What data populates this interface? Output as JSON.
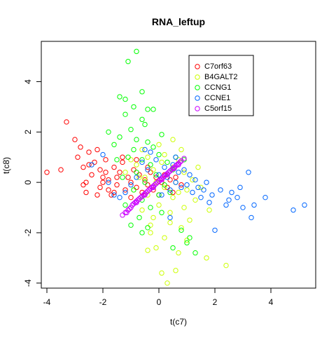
{
  "chart_data": {
    "type": "scatter",
    "title": "RNA_leftup",
    "xlabel": "t(c7)",
    "ylabel": "t(c8)",
    "xlim": [
      -4.2,
      5.6
    ],
    "ylim": [
      -4.2,
      5.6
    ],
    "x_ticks": [
      -4,
      -2,
      0,
      2,
      4
    ],
    "y_ticks": [
      -4,
      -2,
      0,
      2,
      4
    ],
    "grid": false,
    "legend_position": "top-right",
    "series": [
      {
        "name": "C7orf63",
        "color": "#FF0000",
        "points": [
          [
            -4.0,
            0.4
          ],
          [
            -3.5,
            0.5
          ],
          [
            -3.3,
            2.4
          ],
          [
            -3.0,
            1.7
          ],
          [
            -2.9,
            1.0
          ],
          [
            -2.8,
            1.4
          ],
          [
            -2.7,
            0.6
          ],
          [
            -2.7,
            -0.1
          ],
          [
            -2.6,
            -0.4
          ],
          [
            -2.6,
            0.0
          ],
          [
            -2.5,
            1.2
          ],
          [
            -2.5,
            0.7
          ],
          [
            -2.4,
            0.3
          ],
          [
            -2.3,
            0.8
          ],
          [
            -2.2,
            1.3
          ],
          [
            -2.1,
            0.5
          ],
          [
            -2.1,
            -0.2
          ],
          [
            -2.0,
            0.2
          ],
          [
            -2.0,
            0.0
          ],
          [
            -1.9,
            0.9
          ],
          [
            -1.9,
            0.4
          ],
          [
            -1.8,
            -0.3
          ],
          [
            -1.8,
            0.1
          ],
          [
            -1.7,
            -0.5
          ],
          [
            -1.6,
            0.6
          ],
          [
            -1.5,
            0.2
          ],
          [
            -1.5,
            -0.1
          ],
          [
            -1.4,
            0.4
          ],
          [
            -1.3,
            0.8
          ],
          [
            -1.2,
            -0.3
          ],
          [
            -1.1,
            0.2
          ],
          [
            -1.0,
            -0.6
          ],
          [
            -1.0,
            0.0
          ],
          [
            -0.9,
            0.5
          ],
          [
            -0.8,
            -0.2
          ],
          [
            -0.7,
            0.3
          ],
          [
            -0.6,
            -0.4
          ],
          [
            -0.5,
            0.1
          ],
          [
            -0.4,
            -0.1
          ],
          [
            -0.3,
            0.4
          ],
          [
            -0.2,
            -0.3
          ],
          [
            -0.1,
            0.2
          ],
          [
            0.0,
            -0.5
          ],
          [
            0.1,
            0.0
          ],
          [
            0.2,
            0.3
          ],
          [
            0.3,
            -0.2
          ],
          [
            0.4,
            0.1
          ],
          [
            0.5,
            -0.4
          ],
          [
            0.6,
            0.2
          ],
          [
            0.8,
            -0.1
          ],
          [
            -1.6,
            -0.4
          ],
          [
            -2.2,
            -0.5
          ],
          [
            -1.3,
            1.0
          ],
          [
            -0.8,
            0.9
          ],
          [
            -0.4,
            0.6
          ]
        ]
      },
      {
        "name": "B4GALT2",
        "color": "#CCFF00",
        "points": [
          [
            0.3,
            -4.0
          ],
          [
            0.1,
            -3.6
          ],
          [
            0.6,
            -3.5
          ],
          [
            2.4,
            -3.3
          ],
          [
            0.7,
            -2.8
          ],
          [
            -0.4,
            -2.7
          ],
          [
            -0.1,
            -2.6
          ],
          [
            1.7,
            -3.0
          ],
          [
            0.2,
            -2.2
          ],
          [
            -0.3,
            -2.0
          ],
          [
            0.8,
            -1.8
          ],
          [
            1.1,
            -1.5
          ],
          [
            -0.2,
            -1.4
          ],
          [
            0.4,
            -1.2
          ],
          [
            0.9,
            -1.0
          ],
          [
            -0.6,
            -1.1
          ],
          [
            0.0,
            -0.9
          ],
          [
            1.3,
            -0.7
          ],
          [
            0.5,
            -0.6
          ],
          [
            -0.4,
            -0.5
          ],
          [
            0.7,
            -0.4
          ],
          [
            1.0,
            -0.3
          ],
          [
            0.2,
            -0.2
          ],
          [
            -0.1,
            0.0
          ],
          [
            0.6,
            0.0
          ],
          [
            1.2,
            0.1
          ],
          [
            -0.5,
            0.2
          ],
          [
            0.3,
            0.3
          ],
          [
            0.9,
            0.4
          ],
          [
            -0.2,
            0.5
          ],
          [
            0.5,
            0.6
          ],
          [
            -0.8,
            0.7
          ],
          [
            0.1,
            0.8
          ],
          [
            0.7,
            0.9
          ],
          [
            -0.4,
            1.0
          ],
          [
            0.2,
            1.1
          ],
          [
            -1.0,
            0.9
          ],
          [
            -0.7,
            0.2
          ],
          [
            1.5,
            -0.2
          ],
          [
            1.8,
            -1.1
          ],
          [
            -0.9,
            -0.3
          ],
          [
            0.4,
            -1.6
          ],
          [
            1.0,
            -2.3
          ],
          [
            -0.6,
            1.3
          ],
          [
            0.0,
            1.5
          ],
          [
            1.4,
            0.6
          ],
          [
            -1.2,
            0.4
          ],
          [
            0.8,
            1.3
          ],
          [
            -0.3,
            -1.7
          ],
          [
            0.5,
            1.7
          ]
        ]
      },
      {
        "name": "CCNG1",
        "color": "#00FF00",
        "points": [
          [
            -0.8,
            5.2
          ],
          [
            -1.1,
            4.8
          ],
          [
            -1.4,
            3.4
          ],
          [
            -1.2,
            3.3
          ],
          [
            -0.6,
            3.6
          ],
          [
            -0.9,
            3.0
          ],
          [
            -0.4,
            2.9
          ],
          [
            -1.8,
            2.0
          ],
          [
            -1.2,
            2.7
          ],
          [
            -0.6,
            2.5
          ],
          [
            -0.2,
            2.9
          ],
          [
            -0.5,
            2.3
          ],
          [
            -1.0,
            2.1
          ],
          [
            -1.4,
            1.8
          ],
          [
            -0.8,
            1.7
          ],
          [
            -1.6,
            1.5
          ],
          [
            -0.4,
            1.6
          ],
          [
            -0.9,
            1.3
          ],
          [
            -0.2,
            1.4
          ],
          [
            0.1,
            1.9
          ],
          [
            -1.1,
            1.0
          ],
          [
            -0.6,
            0.9
          ],
          [
            0.0,
            1.1
          ],
          [
            -0.3,
            0.7
          ],
          [
            0.3,
            0.8
          ],
          [
            -0.8,
            0.4
          ],
          [
            -0.1,
            0.3
          ],
          [
            0.5,
            0.5
          ],
          [
            -1.3,
            0.2
          ],
          [
            -0.5,
            0.0
          ],
          [
            0.2,
            -0.1
          ],
          [
            -0.9,
            -0.3
          ],
          [
            0.0,
            -0.5
          ],
          [
            -0.6,
            -0.7
          ],
          [
            0.4,
            -0.4
          ],
          [
            -1.2,
            -0.9
          ],
          [
            -0.3,
            -1.0
          ],
          [
            -0.7,
            -1.4
          ],
          [
            0.1,
            -1.2
          ],
          [
            -1.0,
            -1.7
          ],
          [
            -0.4,
            -1.8
          ],
          [
            0.8,
            -1.9
          ],
          [
            1.1,
            -2.2
          ],
          [
            1.0,
            -2.4
          ],
          [
            1.3,
            -2.8
          ],
          [
            0.5,
            -2.6
          ],
          [
            -0.6,
            -2.0
          ],
          [
            0.6,
            1.0
          ],
          [
            0.9,
            0.9
          ],
          [
            -1.5,
            0.9
          ]
        ]
      },
      {
        "name": "CCNE1",
        "color": "#0066FF",
        "points": [
          [
            5.2,
            -0.9
          ],
          [
            4.8,
            -1.1
          ],
          [
            3.8,
            -0.6
          ],
          [
            3.4,
            -0.9
          ],
          [
            3.3,
            -1.4
          ],
          [
            3.2,
            0.4
          ],
          [
            3.0,
            -1.0
          ],
          [
            2.9,
            -0.2
          ],
          [
            2.8,
            -0.6
          ],
          [
            2.6,
            -0.4
          ],
          [
            2.5,
            -0.7
          ],
          [
            2.4,
            -0.9
          ],
          [
            2.2,
            -0.3
          ],
          [
            2.0,
            -1.9
          ],
          [
            1.9,
            -0.5
          ],
          [
            1.8,
            -0.8
          ],
          [
            1.6,
            -0.3
          ],
          [
            1.5,
            -0.6
          ],
          [
            1.4,
            -0.2
          ],
          [
            1.3,
            0.1
          ],
          [
            1.2,
            -0.4
          ],
          [
            1.1,
            0.3
          ],
          [
            1.0,
            -0.1
          ],
          [
            0.9,
            0.5
          ],
          [
            0.8,
            -0.2
          ],
          [
            0.7,
            0.4
          ],
          [
            0.6,
            0.0
          ],
          [
            0.5,
            0.7
          ],
          [
            0.4,
            -0.3
          ],
          [
            0.3,
            0.2
          ],
          [
            0.2,
            0.6
          ],
          [
            0.1,
            -0.5
          ],
          [
            0.0,
            0.3
          ],
          [
            -0.1,
            0.9
          ],
          [
            -0.2,
            -0.2
          ],
          [
            -0.4,
            0.5
          ],
          [
            -0.5,
            1.3
          ],
          [
            -0.6,
            0.8
          ],
          [
            -0.8,
            0.2
          ],
          [
            -1.0,
            -0.1
          ],
          [
            -1.2,
            -0.4
          ],
          [
            -1.4,
            -0.6
          ],
          [
            -1.6,
            -0.5
          ],
          [
            -1.8,
            0.0
          ],
          [
            -2.0,
            1.1
          ],
          [
            -2.4,
            0.7
          ],
          [
            0.4,
            -1.4
          ],
          [
            1.7,
            0.0
          ],
          [
            0.6,
            1.0
          ],
          [
            -0.3,
            1.2
          ]
        ]
      },
      {
        "name": "C5orf15",
        "color": "#CC00FF",
        "points": [
          [
            -1.3,
            -1.3
          ],
          [
            -1.2,
            -1.2
          ],
          [
            -1.1,
            -1.1
          ],
          [
            -1.0,
            -1.0
          ],
          [
            -0.95,
            -0.9
          ],
          [
            -0.9,
            -0.85
          ],
          [
            -0.85,
            -0.8
          ],
          [
            -0.8,
            -0.75
          ],
          [
            -0.75,
            -0.7
          ],
          [
            -0.7,
            -0.65
          ],
          [
            -0.65,
            -0.6
          ],
          [
            -0.6,
            -0.55
          ],
          [
            -0.55,
            -0.5
          ],
          [
            -0.5,
            -0.45
          ],
          [
            -0.45,
            -0.4
          ],
          [
            -0.4,
            -0.35
          ],
          [
            -0.35,
            -0.3
          ],
          [
            -0.3,
            -0.25
          ],
          [
            -0.25,
            -0.2
          ],
          [
            -0.2,
            -0.15
          ],
          [
            -0.15,
            -0.1
          ],
          [
            -0.1,
            -0.05
          ],
          [
            -0.05,
            0.0
          ],
          [
            0.0,
            0.05
          ],
          [
            0.05,
            0.1
          ],
          [
            0.1,
            0.15
          ],
          [
            0.15,
            0.2
          ],
          [
            0.2,
            0.25
          ],
          [
            0.25,
            0.3
          ],
          [
            0.3,
            0.35
          ],
          [
            0.35,
            0.4
          ],
          [
            0.4,
            0.45
          ],
          [
            0.45,
            0.5
          ],
          [
            0.5,
            0.55
          ],
          [
            0.55,
            0.6
          ],
          [
            0.6,
            0.65
          ],
          [
            0.65,
            0.7
          ],
          [
            0.7,
            0.75
          ],
          [
            0.75,
            0.8
          ],
          [
            0.8,
            0.85
          ],
          [
            -1.15,
            -1.2
          ],
          [
            -1.05,
            -1.05
          ],
          [
            -0.5,
            -0.5
          ],
          [
            0.1,
            0.1
          ],
          [
            0.55,
            0.55
          ],
          [
            0.9,
            0.95
          ],
          [
            -0.2,
            -0.2
          ],
          [
            0.3,
            0.3
          ],
          [
            -0.8,
            -0.8
          ],
          [
            0.7,
            0.7
          ]
        ]
      }
    ]
  }
}
